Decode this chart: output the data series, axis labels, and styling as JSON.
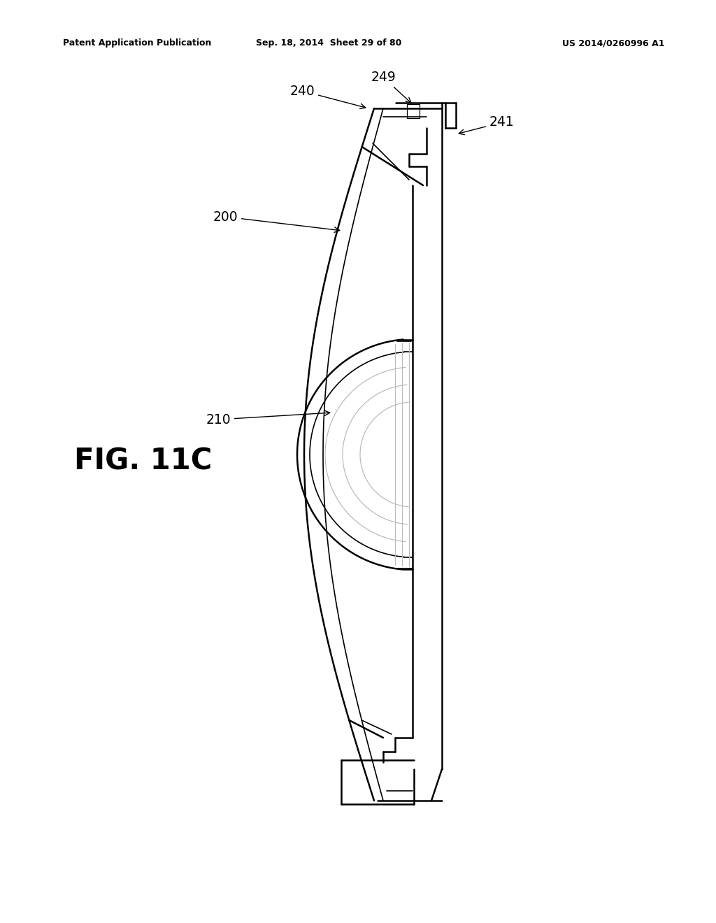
{
  "header_left": "Patent Application Publication",
  "header_center": "Sep. 18, 2014  Sheet 29 of 80",
  "header_right": "US 2014/0260996 A1",
  "fig_label": "FIG. 11C",
  "bg_color": "#ffffff",
  "line_color": "#000000",
  "lw_main": 1.8,
  "lw_thin": 0.9,
  "lw_inner": 1.2
}
